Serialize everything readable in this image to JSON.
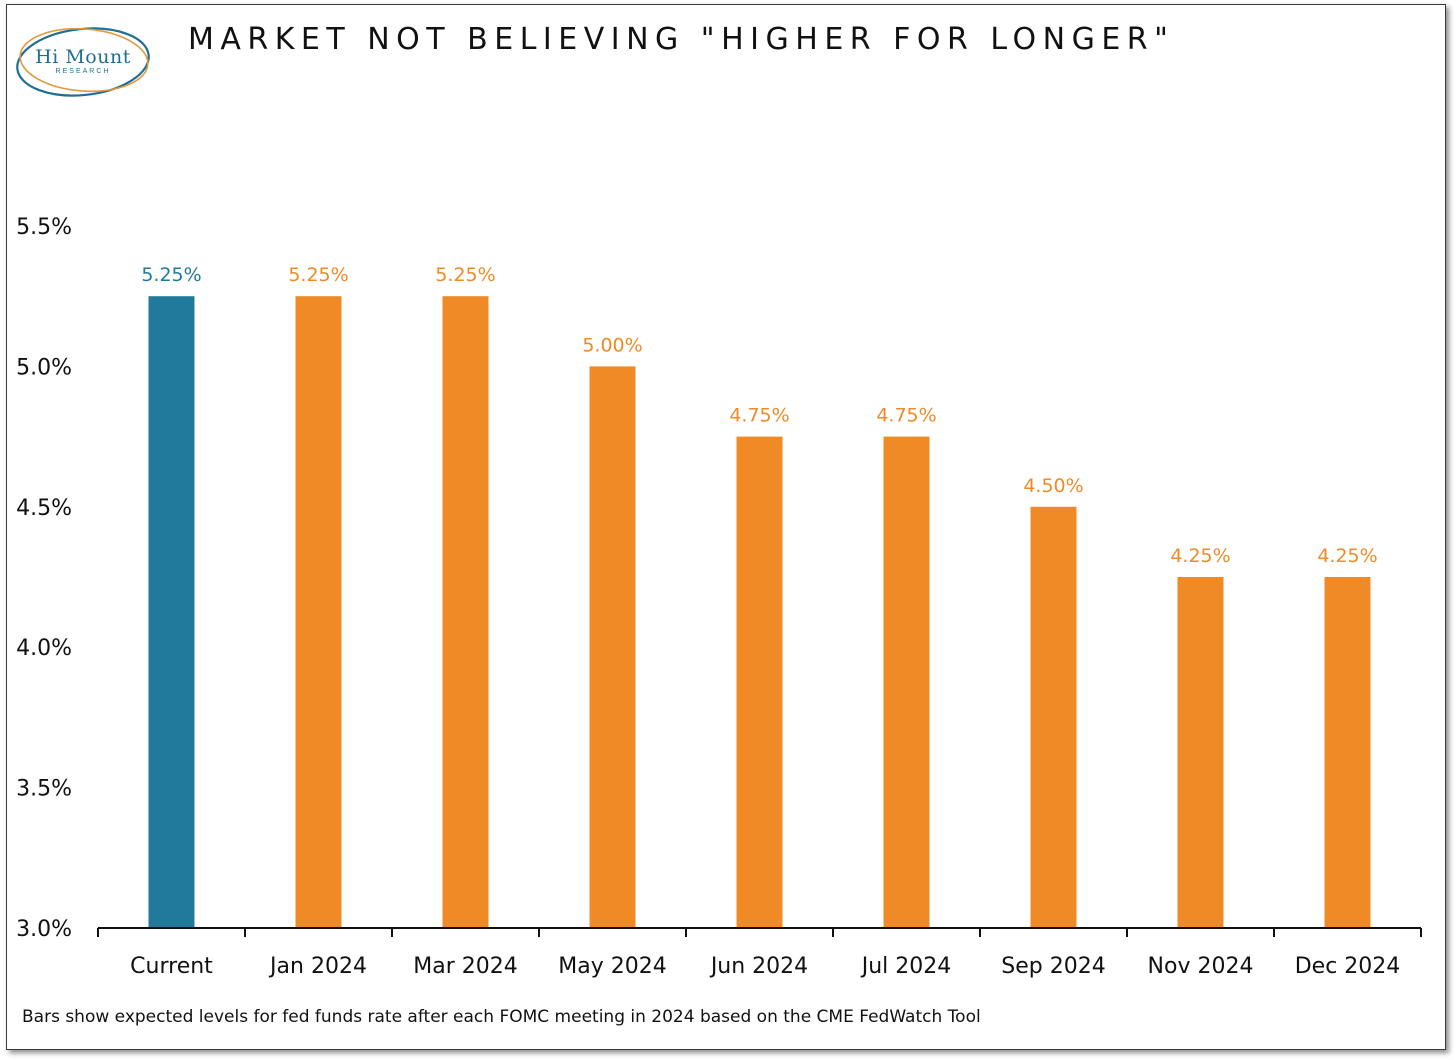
{
  "title": "MARKET NOT BELIEVING \"HIGHER FOR LONGER\"",
  "logo": {
    "name": "Hi Mount",
    "sub": "RESEARCH"
  },
  "footnote": "Bars show expected levels for fed funds rate after each FOMC meeting in 2024 based on the CME FedWatch Tool",
  "colors": {
    "current": "#217a9c",
    "projected": "#ef8a26",
    "logo_teal": "#1f6f93",
    "logo_orange": "#e39a3d"
  },
  "chart_data": {
    "type": "bar",
    "categories": [
      "Current",
      "Jan 2024",
      "Mar 2024",
      "May 2024",
      "Jun 2024",
      "Jul 2024",
      "Sep 2024",
      "Nov 2024",
      "Dec 2024"
    ],
    "values": [
      5.25,
      5.25,
      5.25,
      5.0,
      4.75,
      4.75,
      4.5,
      4.25,
      4.25
    ],
    "data_labels": [
      "5.25%",
      "5.25%",
      "5.25%",
      "5.00%",
      "4.75%",
      "4.75%",
      "4.50%",
      "4.25%",
      "4.25%"
    ],
    "bar_colors": [
      "#217a9c",
      "#ef8a26",
      "#ef8a26",
      "#ef8a26",
      "#ef8a26",
      "#ef8a26",
      "#ef8a26",
      "#ef8a26",
      "#ef8a26"
    ],
    "ylim": [
      3.0,
      5.5
    ],
    "yticks": [
      3.0,
      3.5,
      4.0,
      4.5,
      5.0,
      5.5
    ],
    "ytick_labels": [
      "3.0%",
      "3.5%",
      "4.0%",
      "4.5%",
      "5.0%",
      "5.5%"
    ],
    "grid": false,
    "xlabel": "",
    "ylabel": ""
  }
}
